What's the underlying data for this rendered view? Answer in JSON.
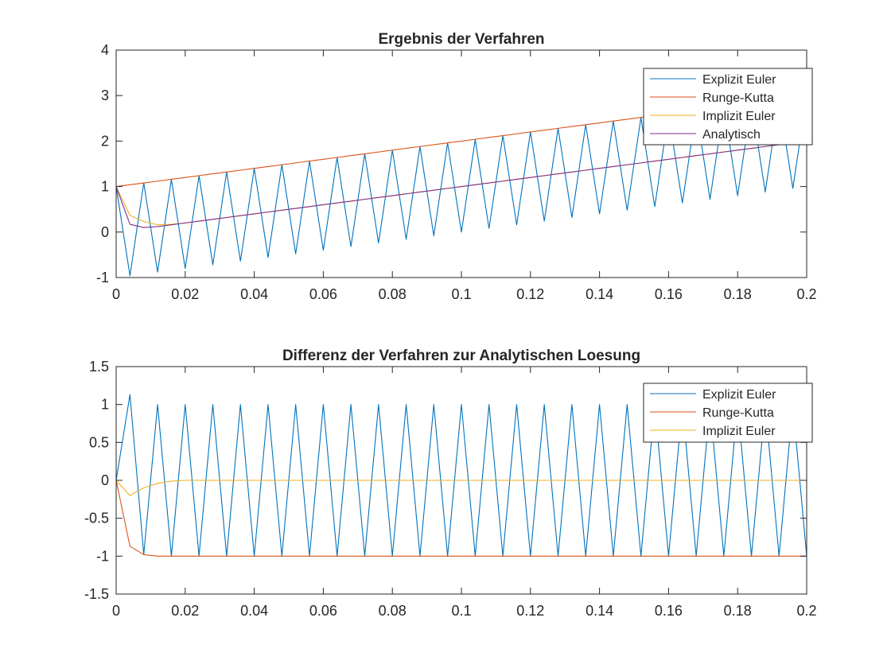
{
  "chart_data": [
    {
      "type": "line",
      "title": "Ergebnis der Verfahren",
      "xlabel": "",
      "ylabel": "",
      "xlim": [
        0,
        0.2
      ],
      "ylim": [
        -1,
        4
      ],
      "x_ticks": [
        0,
        0.02,
        0.04,
        0.06,
        0.08,
        0.1,
        0.12,
        0.14,
        0.16,
        0.18,
        0.2
      ],
      "x_tick_labels": [
        "0",
        "0.02",
        "0.04",
        "0.06",
        "0.08",
        "0.1",
        "0.12",
        "0.14",
        "0.16",
        "0.18",
        "0.2"
      ],
      "y_ticks": [
        -1,
        0,
        1,
        2,
        3,
        4
      ],
      "y_tick_labels": [
        "-1",
        "0",
        "1",
        "2",
        "3",
        "4"
      ],
      "grid": false,
      "legend_position": "top-right",
      "x": [
        0,
        0.004,
        0.008,
        0.012,
        0.016,
        0.02,
        0.024,
        0.028,
        0.032,
        0.036,
        0.04,
        0.044,
        0.048,
        0.052,
        0.056,
        0.06,
        0.064,
        0.068,
        0.072,
        0.076,
        0.08,
        0.084,
        0.088,
        0.092,
        0.096,
        0.1,
        0.104,
        0.108,
        0.112,
        0.116,
        0.12,
        0.124,
        0.128,
        0.132,
        0.136,
        0.14,
        0.144,
        0.148,
        0.152,
        0.156,
        0.16,
        0.164,
        0.168,
        0.172,
        0.176,
        0.18,
        0.184,
        0.188,
        0.192,
        0.196,
        0.2
      ],
      "series": [
        {
          "name": "Explizit Euler",
          "color": "#0072bd",
          "values": [
            1,
            -0.96,
            1.08,
            -0.88,
            1.16,
            -0.8,
            1.24,
            -0.72,
            1.32,
            -0.64,
            1.4,
            -0.56,
            1.48,
            -0.48,
            1.56,
            -0.4,
            1.64,
            -0.32,
            1.72,
            -0.24,
            1.8,
            -0.16,
            1.88,
            -0.08,
            1.96,
            0,
            2.04,
            0.08,
            2.12,
            0.16,
            2.2,
            0.24,
            2.28,
            0.32,
            2.36,
            0.4,
            2.44,
            0.48,
            2.52,
            0.56,
            2.6,
            0.64,
            2.68,
            0.72,
            2.76,
            0.8,
            2.84,
            0.88,
            2.92,
            0.96,
            3
          ]
        },
        {
          "name": "Runge-Kutta",
          "color": "#d95319",
          "values": [
            1,
            1.04,
            1.08,
            1.12,
            1.16,
            1.2,
            1.24,
            1.28,
            1.32,
            1.36,
            1.4,
            1.44,
            1.48,
            1.52,
            1.56,
            1.6,
            1.64,
            1.68,
            1.72,
            1.76,
            1.8,
            1.84,
            1.88,
            1.92,
            1.96,
            2,
            2.04,
            2.08,
            2.12,
            2.16,
            2.2,
            2.24,
            2.28,
            2.32,
            2.36,
            2.4,
            2.44,
            2.48,
            2.52,
            2.56,
            2.6,
            2.64,
            2.68,
            2.72,
            2.76,
            2.8,
            2.84,
            2.88,
            2.92,
            2.96,
            3
          ]
        },
        {
          "name": "Implizit Euler",
          "color": "#edb120",
          "values": [
            1,
            0.37,
            0.23,
            0.16,
            0.17,
            0.2,
            0.24,
            0.28,
            0.32,
            0.36,
            0.4,
            0.44,
            0.48,
            0.52,
            0.56,
            0.6,
            0.64,
            0.68,
            0.72,
            0.76,
            0.8,
            0.84,
            0.88,
            0.92,
            0.96,
            1,
            1.04,
            1.08,
            1.12,
            1.16,
            1.2,
            1.24,
            1.28,
            1.32,
            1.36,
            1.4,
            1.44,
            1.48,
            1.52,
            1.56,
            1.6,
            1.64,
            1.68,
            1.72,
            1.76,
            1.8,
            1.84,
            1.88,
            1.92,
            1.96,
            2
          ]
        },
        {
          "name": "Analytisch",
          "color": "#7e2f8e",
          "values": [
            1,
            0.17,
            0.1,
            0.12,
            0.16,
            0.2,
            0.24,
            0.28,
            0.32,
            0.36,
            0.4,
            0.44,
            0.48,
            0.52,
            0.56,
            0.6,
            0.64,
            0.68,
            0.72,
            0.76,
            0.8,
            0.84,
            0.88,
            0.92,
            0.96,
            1,
            1.04,
            1.08,
            1.12,
            1.16,
            1.2,
            1.24,
            1.28,
            1.32,
            1.36,
            1.4,
            1.44,
            1.48,
            1.52,
            1.56,
            1.6,
            1.64,
            1.68,
            1.72,
            1.76,
            1.8,
            1.84,
            1.88,
            1.92,
            1.96,
            2
          ]
        }
      ]
    },
    {
      "type": "line",
      "title": "Differenz der Verfahren zur Analytischen Loesung",
      "xlabel": "",
      "ylabel": "",
      "xlim": [
        0,
        0.2
      ],
      "ylim": [
        -1.5,
        1.5
      ],
      "x_ticks": [
        0,
        0.02,
        0.04,
        0.06,
        0.08,
        0.1,
        0.12,
        0.14,
        0.16,
        0.18,
        0.2
      ],
      "x_tick_labels": [
        "0",
        "0.02",
        "0.04",
        "0.06",
        "0.08",
        "0.1",
        "0.12",
        "0.14",
        "0.16",
        "0.18",
        "0.2"
      ],
      "y_ticks": [
        -1.5,
        -1,
        -0.5,
        0,
        0.5,
        1,
        1.5
      ],
      "y_tick_labels": [
        "-1.5",
        "-1",
        "-0.5",
        "0",
        "0.5",
        "1",
        "1.5"
      ],
      "grid": false,
      "legend_position": "top-right",
      "x": [
        0,
        0.004,
        0.008,
        0.012,
        0.016,
        0.02,
        0.024,
        0.028,
        0.032,
        0.036,
        0.04,
        0.044,
        0.048,
        0.052,
        0.056,
        0.06,
        0.064,
        0.068,
        0.072,
        0.076,
        0.08,
        0.084,
        0.088,
        0.092,
        0.096,
        0.1,
        0.104,
        0.108,
        0.112,
        0.116,
        0.12,
        0.124,
        0.128,
        0.132,
        0.136,
        0.14,
        0.144,
        0.148,
        0.152,
        0.156,
        0.16,
        0.164,
        0.168,
        0.172,
        0.176,
        0.18,
        0.184,
        0.188,
        0.192,
        0.196,
        0.2
      ],
      "series": [
        {
          "name": "Explizit Euler",
          "color": "#0072bd",
          "values": [
            0,
            1.13,
            -0.98,
            1,
            -1,
            1,
            -1,
            1,
            -1,
            1,
            -1,
            1,
            -1,
            1,
            -1,
            1,
            -1,
            1,
            -1,
            1,
            -1,
            1,
            -1,
            1,
            -1,
            1,
            -1,
            1,
            -1,
            1,
            -1,
            1,
            -1,
            1,
            -1,
            1,
            -1,
            1,
            -1,
            1,
            -1,
            1,
            -1,
            1,
            -1,
            1,
            -1,
            1,
            -1,
            1,
            -1
          ]
        },
        {
          "name": "Runge-Kutta",
          "color": "#d95319",
          "values": [
            0,
            -0.87,
            -0.98,
            -1,
            -1,
            -1,
            -1,
            -1,
            -1,
            -1,
            -1,
            -1,
            -1,
            -1,
            -1,
            -1,
            -1,
            -1,
            -1,
            -1,
            -1,
            -1,
            -1,
            -1,
            -1,
            -1,
            -1,
            -1,
            -1,
            -1,
            -1,
            -1,
            -1,
            -1,
            -1,
            -1,
            -1,
            -1,
            -1,
            -1,
            -1,
            -1,
            -1,
            -1,
            -1,
            -1,
            -1,
            -1,
            -1,
            -1,
            -1
          ]
        },
        {
          "name": "Implizit Euler",
          "color": "#edb120",
          "values": [
            0,
            -0.2,
            -0.1,
            -0.04,
            -0.01,
            0,
            0,
            0,
            0,
            0,
            0,
            0,
            0,
            0,
            0,
            0,
            0,
            0,
            0,
            0,
            0,
            0,
            0,
            0,
            0,
            0,
            0,
            0,
            0,
            0,
            0,
            0,
            0,
            0,
            0,
            0,
            0,
            0,
            0,
            0,
            0,
            0,
            0,
            0,
            0,
            0,
            0,
            0,
            0,
            0,
            0
          ]
        }
      ]
    }
  ]
}
